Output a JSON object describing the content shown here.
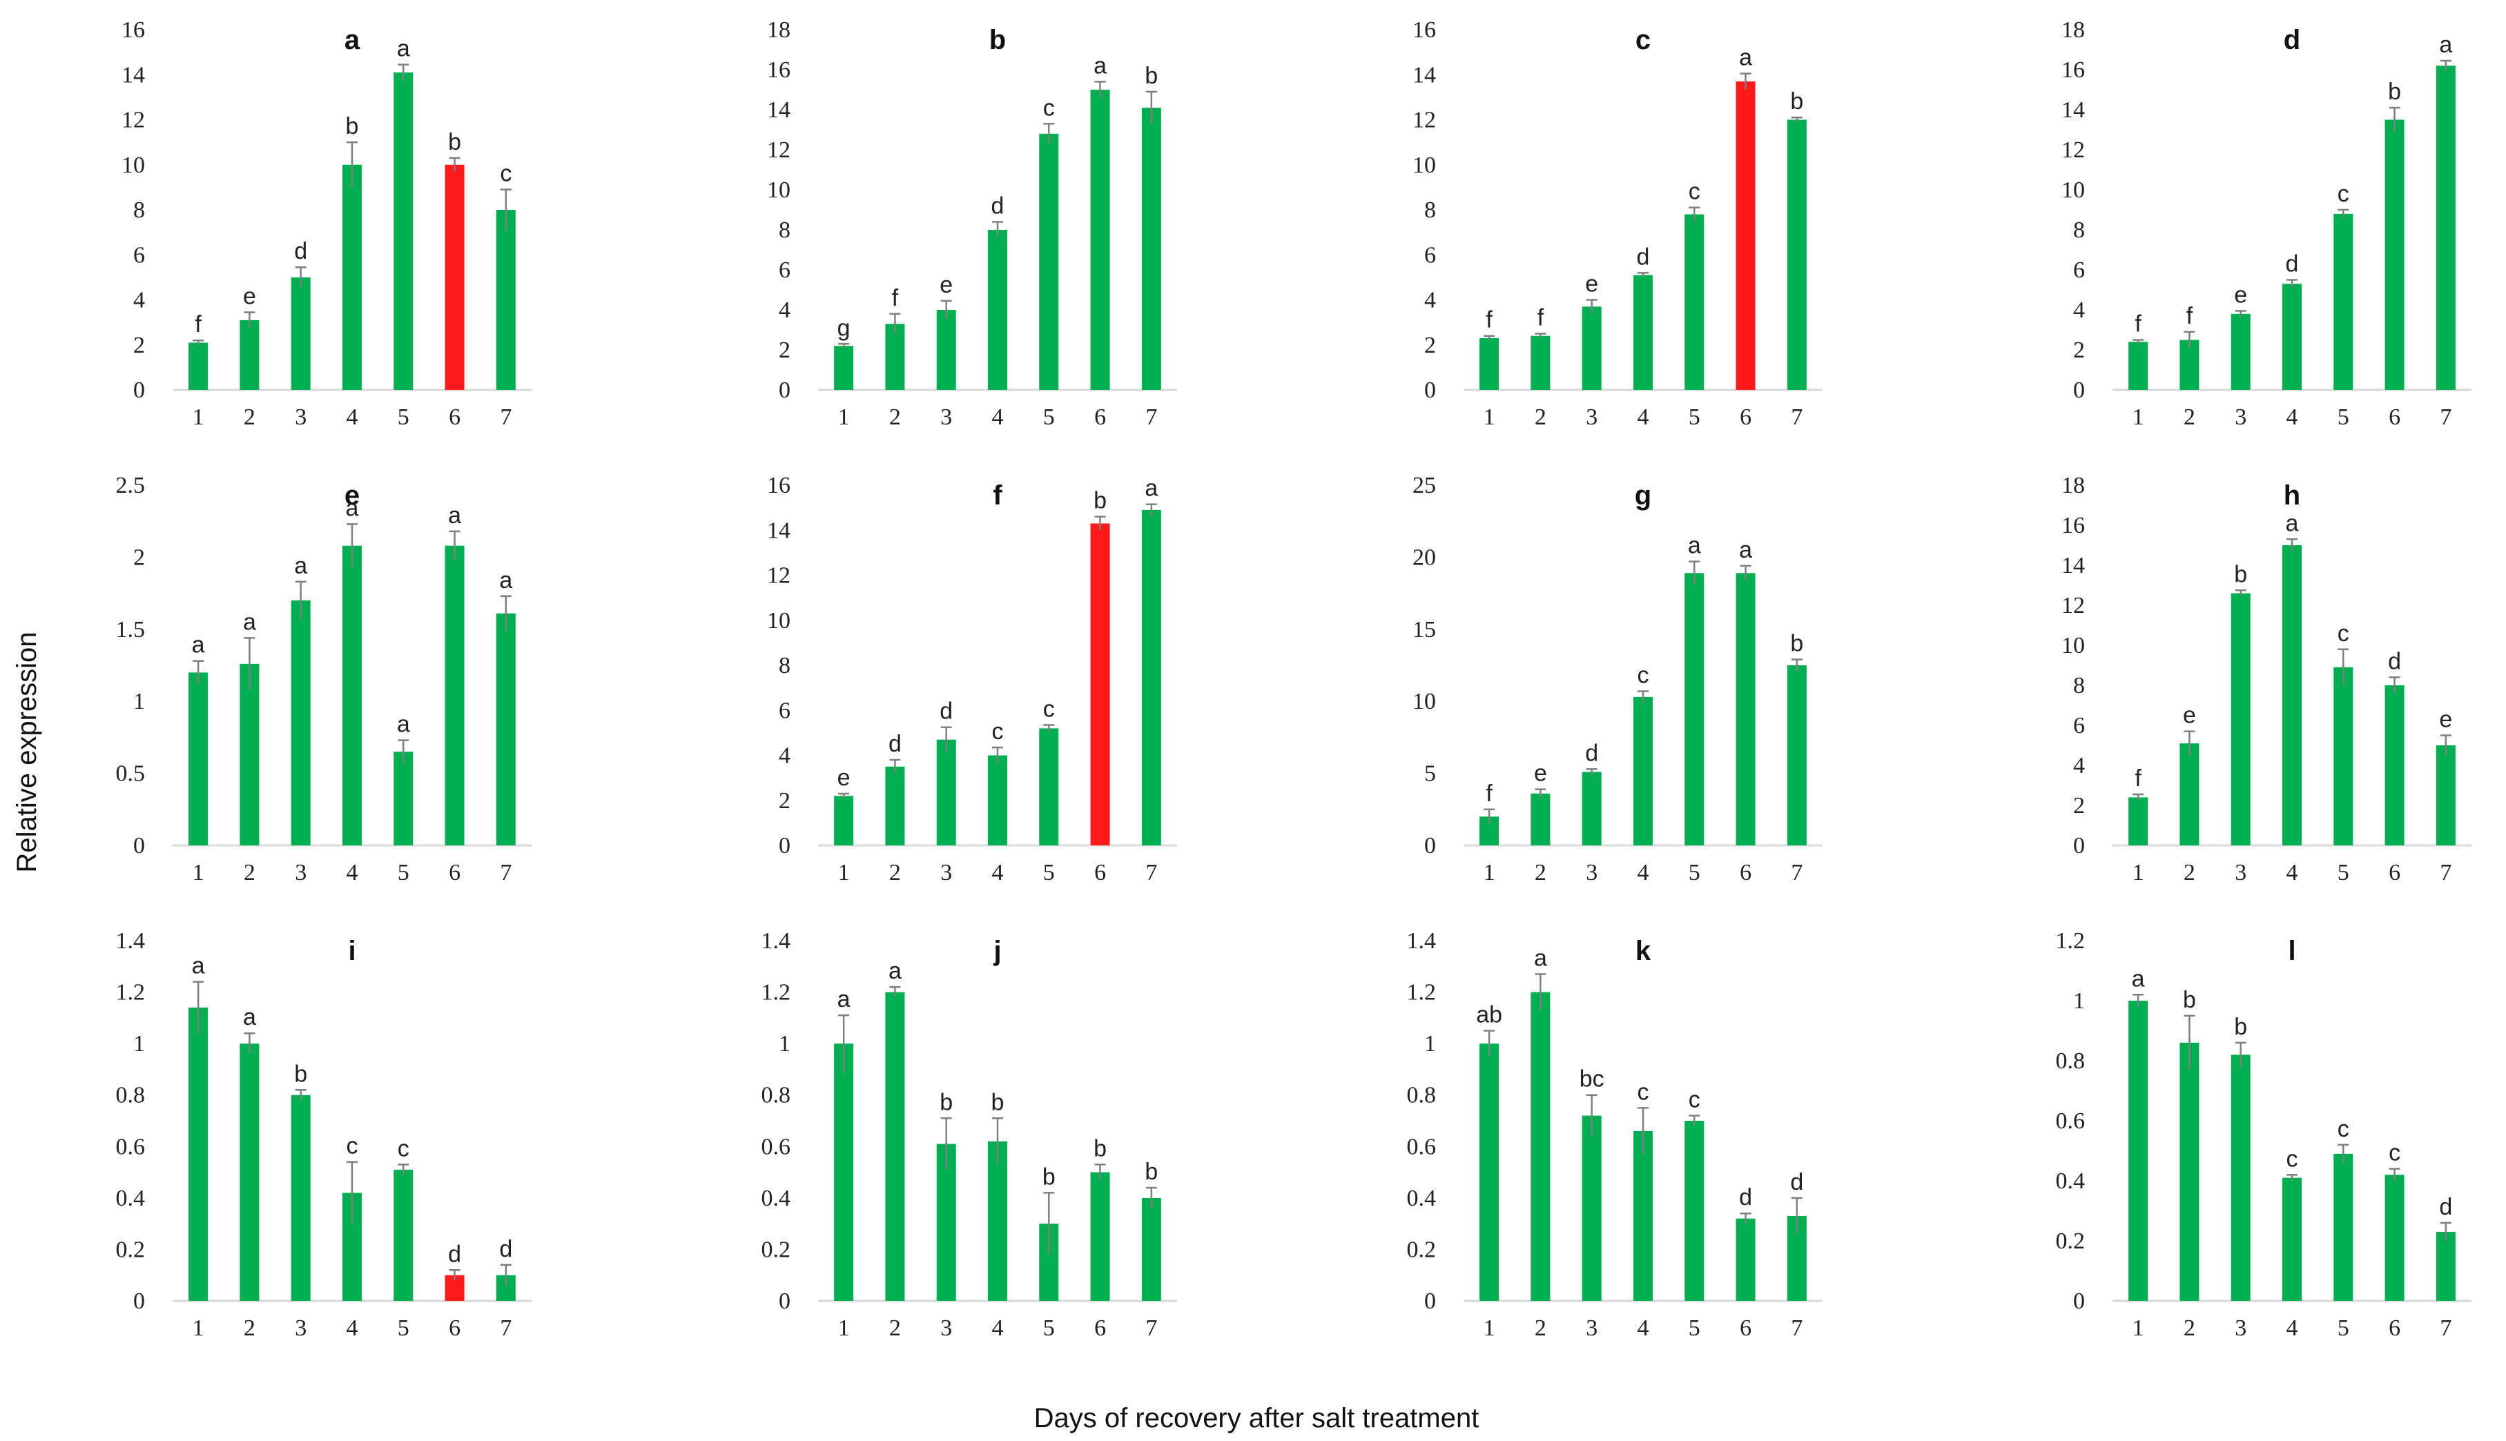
{
  "figure": {
    "ylabel": "Relative expression",
    "xlabel": "Days of recovery after salt treatment",
    "colors": {
      "bar": "#00b050",
      "highlight": "#ff1a1a",
      "error": "#7f7f7f",
      "axis": "#d9d9d9"
    }
  },
  "chart_data": [
    {
      "type": "bar",
      "title": "a",
      "categories": [
        "1",
        "2",
        "3",
        "4",
        "5",
        "6",
        "7"
      ],
      "values": [
        2.1,
        3.1,
        5.0,
        10.0,
        14.1,
        10.0,
        8.0
      ],
      "errors": [
        0.1,
        0.35,
        0.45,
        1.0,
        0.35,
        0.3,
        0.9
      ],
      "labels": [
        "f",
        "e",
        "d",
        "b",
        "a",
        "b",
        "c"
      ],
      "highlight": [
        5
      ],
      "ylim": [
        0,
        16
      ],
      "yticks": [
        0,
        2,
        4,
        6,
        8,
        10,
        12,
        14,
        16
      ],
      "ytick_labels": [
        "0",
        "2",
        "4",
        "6",
        "8",
        "10",
        "12",
        "14",
        "16"
      ]
    },
    {
      "type": "bar",
      "title": "b",
      "categories": [
        "1",
        "2",
        "3",
        "4",
        "5",
        "6",
        "7"
      ],
      "values": [
        2.2,
        3.3,
        4.0,
        8.0,
        12.8,
        15.0,
        14.1
      ],
      "errors": [
        0.1,
        0.5,
        0.45,
        0.4,
        0.5,
        0.4,
        0.8
      ],
      "labels": [
        "g",
        "f",
        "e",
        "d",
        "c",
        "a",
        "b"
      ],
      "highlight": [],
      "ylim": [
        0,
        18
      ],
      "yticks": [
        0,
        2,
        4,
        6,
        8,
        10,
        12,
        14,
        16,
        18
      ],
      "ytick_labels": [
        "0",
        "2",
        "4",
        "6",
        "8",
        "10",
        "12",
        "14",
        "16",
        "18"
      ]
    },
    {
      "type": "bar",
      "title": "c",
      "categories": [
        "1",
        "2",
        "3",
        "4",
        "5",
        "6",
        "7"
      ],
      "values": [
        2.3,
        2.4,
        3.7,
        5.1,
        7.8,
        13.7,
        12.0
      ],
      "errors": [
        0.1,
        0.1,
        0.3,
        0.1,
        0.3,
        0.35,
        0.1
      ],
      "labels": [
        "f",
        "f",
        "e",
        "d",
        "c",
        "a",
        "b"
      ],
      "highlight": [
        5
      ],
      "ylim": [
        0,
        16
      ],
      "yticks": [
        0,
        2,
        4,
        6,
        8,
        10,
        12,
        14,
        16
      ],
      "ytick_labels": [
        "0",
        "2",
        "4",
        "6",
        "8",
        "10",
        "12",
        "14",
        "16"
      ]
    },
    {
      "type": "bar",
      "title": "d",
      "categories": [
        "1",
        "2",
        "3",
        "4",
        "5",
        "6",
        "7"
      ],
      "values": [
        2.4,
        2.5,
        3.8,
        5.3,
        8.8,
        13.5,
        16.2
      ],
      "errors": [
        0.1,
        0.4,
        0.15,
        0.2,
        0.2,
        0.6,
        0.25
      ],
      "labels": [
        "f",
        "f",
        "e",
        "d",
        "c",
        "b",
        "a"
      ],
      "highlight": [],
      "ylim": [
        0,
        18
      ],
      "yticks": [
        0,
        2,
        4,
        6,
        8,
        10,
        12,
        14,
        16,
        18
      ],
      "ytick_labels": [
        "0",
        "2",
        "4",
        "6",
        "8",
        "10",
        "12",
        "14",
        "16",
        "18"
      ]
    },
    {
      "type": "bar",
      "title": "e",
      "categories": [
        "1",
        "2",
        "3",
        "4",
        "5",
        "6",
        "7"
      ],
      "values": [
        1.2,
        1.26,
        1.7,
        2.08,
        0.65,
        2.08,
        1.61
      ],
      "errors": [
        0.08,
        0.18,
        0.13,
        0.15,
        0.08,
        0.1,
        0.12
      ],
      "labels": [
        "a",
        "a",
        "a",
        "a",
        "a",
        "a",
        "a"
      ],
      "highlight": [],
      "ylim": [
        0,
        2.5
      ],
      "yticks": [
        0,
        0.5,
        1,
        1.5,
        2,
        2.5
      ],
      "ytick_labels": [
        "0",
        "0.5",
        "1",
        "1.5",
        "2",
        "2.5"
      ]
    },
    {
      "type": "bar",
      "title": "f",
      "categories": [
        "1",
        "2",
        "3",
        "4",
        "5",
        "6",
        "7"
      ],
      "values": [
        2.2,
        3.5,
        4.7,
        4.0,
        5.2,
        14.3,
        14.9
      ],
      "errors": [
        0.1,
        0.3,
        0.55,
        0.35,
        0.15,
        0.3,
        0.25
      ],
      "labels": [
        "e",
        "d",
        "d",
        "c",
        "c",
        "b",
        "a"
      ],
      "highlight": [
        5
      ],
      "ylim": [
        0,
        16
      ],
      "yticks": [
        0,
        2,
        4,
        6,
        8,
        10,
        12,
        14,
        16
      ],
      "ytick_labels": [
        "0",
        "2",
        "4",
        "6",
        "8",
        "10",
        "12",
        "14",
        "16"
      ]
    },
    {
      "type": "bar",
      "title": "g",
      "categories": [
        "1",
        "2",
        "3",
        "4",
        "5",
        "6",
        "7"
      ],
      "values": [
        2.0,
        3.6,
        5.1,
        10.3,
        18.9,
        18.9,
        12.5
      ],
      "errors": [
        0.5,
        0.3,
        0.2,
        0.4,
        0.8,
        0.5,
        0.4
      ],
      "labels": [
        "f",
        "e",
        "d",
        "c",
        "a",
        "a",
        "b"
      ],
      "highlight": [],
      "ylim": [
        0,
        25
      ],
      "yticks": [
        0,
        5,
        10,
        15,
        20,
        25
      ],
      "ytick_labels": [
        "0",
        "5",
        "10",
        "15",
        "20",
        "25"
      ]
    },
    {
      "type": "bar",
      "title": "h",
      "categories": [
        "1",
        "2",
        "3",
        "4",
        "5",
        "6",
        "7"
      ],
      "values": [
        2.4,
        5.1,
        12.6,
        15.0,
        8.9,
        8.0,
        5.0
      ],
      "errors": [
        0.15,
        0.6,
        0.15,
        0.3,
        0.9,
        0.4,
        0.5
      ],
      "labels": [
        "f",
        "e",
        "b",
        "a",
        "c",
        "d",
        "e"
      ],
      "highlight": [],
      "ylim": [
        0,
        18
      ],
      "yticks": [
        0,
        2,
        4,
        6,
        8,
        10,
        12,
        14,
        16,
        18
      ],
      "ytick_labels": [
        "0",
        "2",
        "4",
        "6",
        "8",
        "10",
        "12",
        "14",
        "16",
        "18"
      ]
    },
    {
      "type": "bar",
      "title": "i",
      "categories": [
        "1",
        "2",
        "3",
        "4",
        "5",
        "6",
        "7"
      ],
      "values": [
        1.14,
        1.0,
        0.8,
        0.42,
        0.51,
        0.1,
        0.1
      ],
      "errors": [
        0.1,
        0.04,
        0.02,
        0.12,
        0.02,
        0.02,
        0.04
      ],
      "labels": [
        "a",
        "a",
        "b",
        "c",
        "c",
        "d",
        "d"
      ],
      "highlight": [
        5
      ],
      "ylim": [
        0,
        1.4
      ],
      "yticks": [
        0,
        0.2,
        0.4,
        0.6,
        0.8,
        1,
        1.2,
        1.4
      ],
      "ytick_labels": [
        "0",
        "0.2",
        "0.4",
        "0.6",
        "0.8",
        "1",
        "1.2",
        "1.4"
      ]
    },
    {
      "type": "bar",
      "title": "j",
      "categories": [
        "1",
        "2",
        "3",
        "4",
        "5",
        "6",
        "7"
      ],
      "values": [
        1.0,
        1.2,
        0.61,
        0.62,
        0.3,
        0.5,
        0.4
      ],
      "errors": [
        0.11,
        0.02,
        0.1,
        0.09,
        0.12,
        0.03,
        0.04
      ],
      "labels": [
        "a",
        "a",
        "b",
        "b",
        "b",
        "b",
        "b"
      ],
      "highlight": [],
      "ylim": [
        0,
        1.4
      ],
      "yticks": [
        0,
        0.2,
        0.4,
        0.6,
        0.8,
        1,
        1.2,
        1.4
      ],
      "ytick_labels": [
        "0",
        "0.2",
        "0.4",
        "0.6",
        "0.8",
        "1",
        "1.2",
        "1.4"
      ]
    },
    {
      "type": "bar",
      "title": "k",
      "categories": [
        "1",
        "2",
        "3",
        "4",
        "5",
        "6",
        "7"
      ],
      "values": [
        1.0,
        1.2,
        0.72,
        0.66,
        0.7,
        0.32,
        0.33
      ],
      "errors": [
        0.05,
        0.07,
        0.08,
        0.09,
        0.02,
        0.02,
        0.07
      ],
      "labels": [
        "ab",
        "a",
        "bc",
        "c",
        "c",
        "d",
        "d"
      ],
      "highlight": [],
      "ylim": [
        0,
        1.4
      ],
      "yticks": [
        0,
        0.2,
        0.4,
        0.6,
        0.8,
        1,
        1.2,
        1.4
      ],
      "ytick_labels": [
        "0",
        "0.2",
        "0.4",
        "0.6",
        "0.8",
        "1",
        "1.2",
        "1.4"
      ]
    },
    {
      "type": "bar",
      "title": "l",
      "categories": [
        "1",
        "2",
        "3",
        "4",
        "5",
        "6",
        "7"
      ],
      "values": [
        1.0,
        0.86,
        0.82,
        0.41,
        0.49,
        0.42,
        0.23
      ],
      "errors": [
        0.02,
        0.09,
        0.04,
        0.01,
        0.03,
        0.02,
        0.03
      ],
      "labels": [
        "a",
        "b",
        "b",
        "c",
        "c",
        "c",
        "d"
      ],
      "highlight": [],
      "ylim": [
        0,
        1.2
      ],
      "yticks": [
        0,
        0.2,
        0.4,
        0.6,
        0.8,
        1,
        1.2
      ],
      "ytick_labels": [
        "0",
        "0.2",
        "0.4",
        "0.6",
        "0.8",
        "1",
        "1.2"
      ]
    }
  ]
}
